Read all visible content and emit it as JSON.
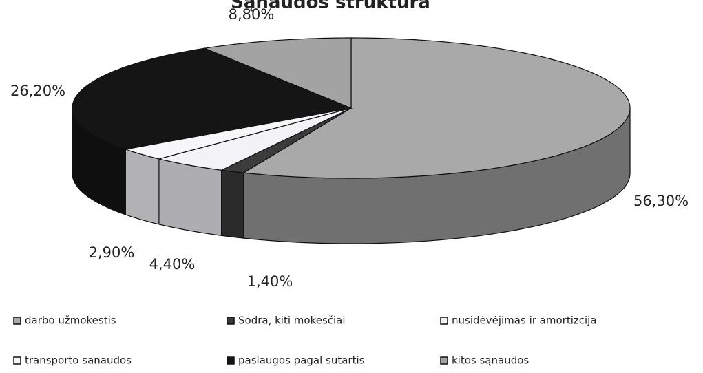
{
  "chart_data": {
    "type": "pie3d",
    "title": "Sąnaudos struktūra",
    "categories": [
      "darbo užmokestis",
      "Sodra, kiti mokesčiai",
      "nusidėvėjimas ir amortizcija",
      "transporto sanaudos",
      "paslaugos pagal sutartis",
      "kitos sąnaudos"
    ],
    "values": [
      56.3,
      1.4,
      4.4,
      2.9,
      26.2,
      8.8
    ],
    "value_labels": [
      "56,30%",
      "1,40%",
      "4,40%",
      "2,90%",
      "26,20%",
      "8,80%"
    ],
    "colors": [
      "#a9a9a9",
      "#3c3c3c",
      "#f2f2f7",
      "#f7f7fa",
      "#151515",
      "#a3a3a3"
    ],
    "legend": "bottom"
  }
}
